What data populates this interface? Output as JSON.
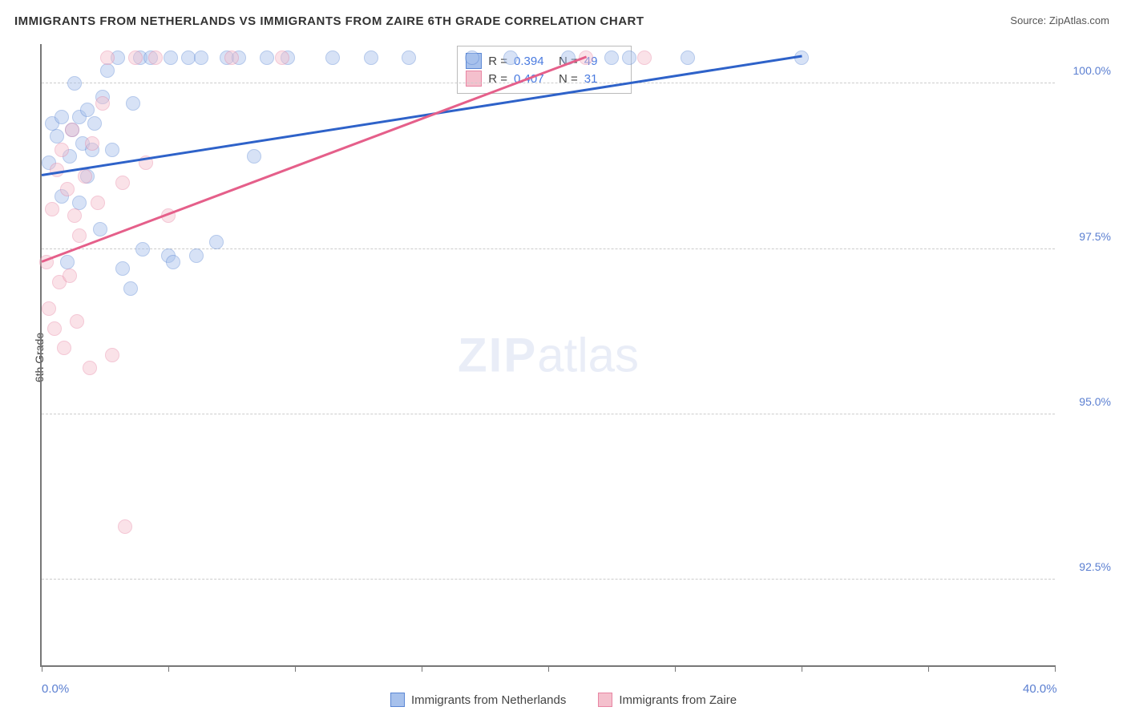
{
  "title": "IMMIGRANTS FROM NETHERLANDS VS IMMIGRANTS FROM ZAIRE 6TH GRADE CORRELATION CHART",
  "source_label": "Source:",
  "source_name": "ZipAtlas.com",
  "y_axis_title": "6th Grade",
  "watermark": {
    "bold": "ZIP",
    "rest": "atlas"
  },
  "chart": {
    "type": "scatter",
    "xlim": [
      0,
      40
    ],
    "ylim": [
      91.2,
      100.6
    ],
    "x_ticks": [
      0,
      5,
      10,
      15,
      20,
      25,
      30,
      35,
      40
    ],
    "x_tick_labels": {
      "0": "0.0%",
      "40": "40.0%"
    },
    "y_gridlines": [
      92.5,
      95.0,
      97.5,
      100.0
    ],
    "y_tick_labels": [
      "92.5%",
      "95.0%",
      "97.5%",
      "100.0%"
    ],
    "background_color": "#ffffff",
    "grid_color": "#cccccc",
    "axis_color": "#777777",
    "tick_label_color": "#5b7fd1",
    "marker_radius": 9,
    "marker_opacity": 0.45,
    "series": [
      {
        "name": "Immigrants from Netherlands",
        "color_fill": "#a7c1ec",
        "color_stroke": "#5b87d4",
        "trend_color": "#2e62c9",
        "R": "0.394",
        "N": "49",
        "trend": {
          "x1": 0,
          "y1": 98.6,
          "x2": 30,
          "y2": 100.4
        },
        "points": [
          [
            0.3,
            98.8
          ],
          [
            0.4,
            99.4
          ],
          [
            0.6,
            99.2
          ],
          [
            0.8,
            98.3
          ],
          [
            0.8,
            99.5
          ],
          [
            1.0,
            97.3
          ],
          [
            1.1,
            98.9
          ],
          [
            1.2,
            99.3
          ],
          [
            1.3,
            100.0
          ],
          [
            1.5,
            98.2
          ],
          [
            1.5,
            99.5
          ],
          [
            1.6,
            99.1
          ],
          [
            1.8,
            99.6
          ],
          [
            1.8,
            98.6
          ],
          [
            2.0,
            99.0
          ],
          [
            2.1,
            99.4
          ],
          [
            2.3,
            97.8
          ],
          [
            2.4,
            99.8
          ],
          [
            2.6,
            100.2
          ],
          [
            2.8,
            99.0
          ],
          [
            3.0,
            100.4
          ],
          [
            3.2,
            97.2
          ],
          [
            3.5,
            96.9
          ],
          [
            3.6,
            99.7
          ],
          [
            3.9,
            100.4
          ],
          [
            4.0,
            97.5
          ],
          [
            4.3,
            100.4
          ],
          [
            5.0,
            97.4
          ],
          [
            5.1,
            100.4
          ],
          [
            5.2,
            97.3
          ],
          [
            5.8,
            100.4
          ],
          [
            6.1,
            97.4
          ],
          [
            6.3,
            100.4
          ],
          [
            6.9,
            97.6
          ],
          [
            7.3,
            100.4
          ],
          [
            7.8,
            100.4
          ],
          [
            8.4,
            98.9
          ],
          [
            8.9,
            100.4
          ],
          [
            9.7,
            100.4
          ],
          [
            11.5,
            100.4
          ],
          [
            13.0,
            100.4
          ],
          [
            14.5,
            100.4
          ],
          [
            17.0,
            100.4
          ],
          [
            18.5,
            100.4
          ],
          [
            20.8,
            100.4
          ],
          [
            22.5,
            100.4
          ],
          [
            23.2,
            100.4
          ],
          [
            25.5,
            100.4
          ],
          [
            30.0,
            100.4
          ]
        ]
      },
      {
        "name": "Immigrants from Zaire",
        "color_fill": "#f4c0cd",
        "color_stroke": "#e885a3",
        "trend_color": "#e55f8a",
        "R": "0.407",
        "N": "31",
        "trend": {
          "x1": 0,
          "y1": 97.3,
          "x2": 21.5,
          "y2": 100.4
        },
        "points": [
          [
            0.2,
            97.3
          ],
          [
            0.3,
            96.6
          ],
          [
            0.4,
            98.1
          ],
          [
            0.5,
            96.3
          ],
          [
            0.6,
            98.7
          ],
          [
            0.7,
            97.0
          ],
          [
            0.8,
            99.0
          ],
          [
            0.9,
            96.0
          ],
          [
            1.0,
            98.4
          ],
          [
            1.1,
            97.1
          ],
          [
            1.2,
            99.3
          ],
          [
            1.3,
            98.0
          ],
          [
            1.4,
            96.4
          ],
          [
            1.5,
            97.7
          ],
          [
            1.7,
            98.6
          ],
          [
            1.9,
            95.7
          ],
          [
            2.0,
            99.1
          ],
          [
            2.2,
            98.2
          ],
          [
            2.4,
            99.7
          ],
          [
            2.6,
            100.4
          ],
          [
            2.8,
            95.9
          ],
          [
            3.2,
            98.5
          ],
          [
            3.3,
            93.3
          ],
          [
            3.7,
            100.4
          ],
          [
            4.1,
            98.8
          ],
          [
            4.5,
            100.4
          ],
          [
            5.0,
            98.0
          ],
          [
            7.5,
            100.4
          ],
          [
            9.5,
            100.4
          ],
          [
            21.5,
            100.4
          ],
          [
            23.8,
            100.4
          ]
        ]
      }
    ],
    "legend": [
      {
        "label": "Immigrants from Netherlands",
        "fill": "#a7c1ec",
        "stroke": "#5b87d4"
      },
      {
        "label": "Immigrants from Zaire",
        "fill": "#f4c0cd",
        "stroke": "#e885a3"
      }
    ]
  }
}
